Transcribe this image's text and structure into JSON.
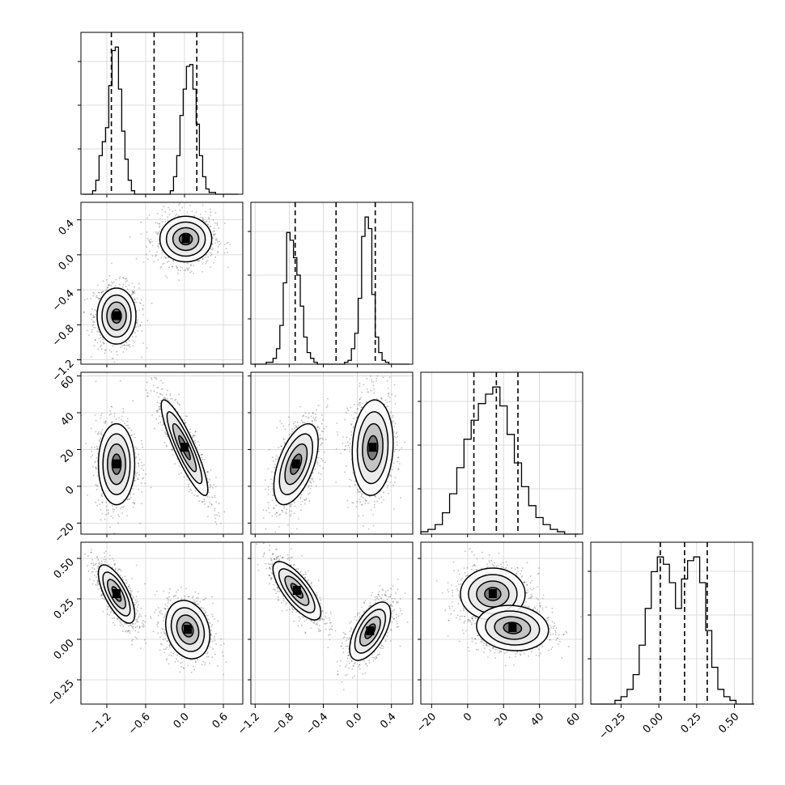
{
  "chart_data": {
    "type": "corner",
    "grid": true,
    "histograms": [
      {
        "index": 0,
        "xlim": [
          -1.6,
          0.9
        ],
        "bins": [
          -1.57,
          -1.52,
          -1.47,
          -1.42,
          -1.37,
          -1.32,
          -1.27,
          -1.22,
          -1.17,
          -1.12,
          -1.07,
          -1.02,
          -0.97,
          -0.92,
          -0.87,
          -0.82,
          -0.77,
          -0.72,
          -0.67,
          -0.62,
          -0.57,
          -0.52,
          -0.47,
          -0.42,
          -0.37,
          -0.32,
          -0.27,
          -0.22,
          -0.17,
          -0.12,
          -0.07,
          -0.02,
          0.03,
          0.08,
          0.13,
          0.18,
          0.23,
          0.28,
          0.33,
          0.38,
          0.43,
          0.48,
          0.53,
          0.58,
          0.63,
          0.68,
          0.73,
          0.78,
          0.83
        ],
        "counts": [
          0,
          0,
          0,
          2,
          8,
          22,
          30,
          38,
          62,
          82,
          84,
          60,
          36,
          20,
          8,
          2,
          0,
          0,
          0,
          0,
          0,
          0,
          0,
          0,
          0,
          0,
          0,
          2,
          10,
          22,
          45,
          60,
          73,
          74,
          60,
          40,
          22,
          10,
          3,
          1,
          1,
          0,
          0,
          0,
          0,
          0,
          0,
          0
        ],
        "quantiles": [
          -1.13,
          -0.47,
          0.19
        ]
      },
      {
        "index": 1,
        "xlim": [
          -1.25,
          0.65
        ],
        "bins": [
          -1.23,
          -1.19,
          -1.15,
          -1.11,
          -1.07,
          -1.03,
          -0.99,
          -0.95,
          -0.91,
          -0.87,
          -0.83,
          -0.79,
          -0.75,
          -0.71,
          -0.67,
          -0.63,
          -0.59,
          -0.55,
          -0.51,
          -0.47,
          -0.43,
          -0.39,
          -0.35,
          -0.31,
          -0.27,
          -0.23,
          -0.19,
          -0.15,
          -0.11,
          -0.07,
          -0.03,
          0.01,
          0.05,
          0.09,
          0.13,
          0.17,
          0.21,
          0.25,
          0.29,
          0.33,
          0.37,
          0.41,
          0.45,
          0.49,
          0.53,
          0.57,
          0.61
        ],
        "counts": [
          0,
          0,
          0,
          0,
          1,
          1,
          3,
          8,
          20,
          42,
          68,
          64,
          55,
          46,
          30,
          14,
          6,
          3,
          1,
          0,
          0,
          0,
          0,
          0,
          0,
          0,
          0,
          1,
          2,
          8,
          16,
          34,
          66,
          76,
          70,
          36,
          14,
          6,
          2,
          1,
          0,
          0,
          0,
          0,
          0,
          0
        ],
        "quantiles": [
          -0.73,
          -0.25,
          0.21
        ]
      },
      {
        "index": 2,
        "xlim": [
          -26,
          64
        ],
        "bins": [
          -26,
          -22,
          -18,
          -14,
          -10,
          -6,
          -2,
          2,
          6,
          10,
          14,
          18,
          22,
          26,
          30,
          34,
          38,
          42,
          46,
          50,
          54,
          58,
          62
        ],
        "counts": [
          1,
          2,
          4,
          9,
          17,
          28,
          40,
          48,
          55,
          59,
          62,
          54,
          42,
          30,
          20,
          12,
          7,
          4,
          2,
          1,
          0,
          0
        ],
        "quantiles": [
          3.5,
          16,
          28
        ]
      },
      {
        "index": 3,
        "xlim": [
          -0.45,
          0.62
        ],
        "bins": [
          -0.45,
          -0.41,
          -0.37,
          -0.33,
          -0.29,
          -0.25,
          -0.21,
          -0.17,
          -0.13,
          -0.09,
          -0.05,
          -0.01,
          0.03,
          0.07,
          0.11,
          0.15,
          0.19,
          0.23,
          0.27,
          0.31,
          0.35,
          0.39,
          0.43,
          0.47,
          0.51,
          0.55,
          0.59,
          0.63
        ],
        "counts": [
          0,
          0,
          0,
          0,
          1,
          2,
          4,
          8,
          16,
          26,
          36,
          40,
          38,
          33,
          26,
          34,
          39,
          40,
          33,
          20,
          10,
          4,
          2,
          1,
          0,
          0,
          0
        ],
        "quantiles": [
          0.01,
          0.17,
          0.32
        ]
      }
    ],
    "pairs": [
      {
        "row": 1,
        "col": 0,
        "xlim": [
          -1.6,
          0.9
        ],
        "ylim": [
          -1.25,
          0.6
        ],
        "clusters": [
          {
            "center": [
              -1.05,
              -0.7
            ],
            "sx": 0.15,
            "sy": 0.16,
            "corr": 0.0
          },
          {
            "center": [
              0.02,
              0.18
            ],
            "sx": 0.2,
            "sy": 0.13,
            "corr": 0.0
          }
        ]
      },
      {
        "row": 2,
        "col": 0,
        "xlim": [
          -1.6,
          0.9
        ],
        "ylim": [
          -26,
          62
        ],
        "clusters": [
          {
            "center": [
              -1.05,
              12
            ],
            "sx": 0.14,
            "sy": 11,
            "corr": 0.0
          },
          {
            "center": [
              0.0,
              21
            ],
            "sx": 0.18,
            "sy": 13,
            "corr": -0.88
          }
        ]
      },
      {
        "row": 2,
        "col": 1,
        "xlim": [
          -1.25,
          0.65
        ],
        "ylim": [
          -26,
          62
        ],
        "clusters": [
          {
            "center": [
              -0.72,
              12
            ],
            "sx": 0.13,
            "sy": 11,
            "corr": 0.55
          },
          {
            "center": [
              0.18,
              21
            ],
            "sx": 0.12,
            "sy": 13,
            "corr": 0.1
          }
        ]
      },
      {
        "row": 2,
        "col": 2,
        "skip": true
      },
      {
        "row": 3,
        "col": 0,
        "xlim": [
          -1.6,
          0.9
        ],
        "ylim": [
          -0.4,
          0.6
        ],
        "clusters": [
          {
            "center": [
              -1.05,
              0.28
            ],
            "sx": 0.14,
            "sy": 0.09,
            "corr": -0.7
          },
          {
            "center": [
              0.05,
              0.06
            ],
            "sx": 0.17,
            "sy": 0.09,
            "corr": -0.2
          }
        ]
      },
      {
        "row": 3,
        "col": 1,
        "xlim": [
          -1.25,
          0.65
        ],
        "ylim": [
          -0.4,
          0.6
        ],
        "clusters": [
          {
            "center": [
              -0.71,
              0.3
            ],
            "sx": 0.14,
            "sy": 0.09,
            "corr": -0.75
          },
          {
            "center": [
              0.15,
              0.05
            ],
            "sx": 0.12,
            "sy": 0.09,
            "corr": 0.6
          }
        ]
      },
      {
        "row": 3,
        "col": 2,
        "xlim": [
          -26,
          64
        ],
        "ylim": [
          -0.4,
          0.6
        ],
        "clusters": [
          {
            "center": [
              14,
              0.28
            ],
            "sx": 9,
            "sy": 0.08,
            "corr": 0.0
          },
          {
            "center": [
              25,
              0.07
            ],
            "sx": 10,
            "sy": 0.07,
            "corr": -0.1
          }
        ]
      }
    ],
    "axes": {
      "x_ticks": [
        {
          "col": 0,
          "values": [
            -1.2,
            -0.6,
            0.0,
            0.6
          ],
          "labels": [
            "−1.2",
            "−0.6",
            "0.0",
            "0.6"
          ]
        },
        {
          "col": 1,
          "values": [
            -1.2,
            -0.8,
            -0.4,
            0.0,
            0.4
          ],
          "labels": [
            "−1.2",
            "−0.8",
            "−0.4",
            "0.0",
            "0.4"
          ]
        },
        {
          "col": 2,
          "values": [
            -20,
            0,
            20,
            40,
            60
          ],
          "labels": [
            "−20",
            "0",
            "20",
            "40",
            "60"
          ]
        },
        {
          "col": 3,
          "values": [
            -0.25,
            0.0,
            0.25,
            0.5
          ],
          "labels": [
            "−0.25",
            "0.00",
            "0.25",
            "0.50"
          ]
        }
      ],
      "y_ticks": [
        {
          "row": 1,
          "values": [
            0.4,
            0.0,
            -0.4,
            -0.8,
            -1.2
          ],
          "labels": [
            "0.4",
            "0.0",
            "−0.4",
            "−0.8",
            "−1.2"
          ]
        },
        {
          "row": 2,
          "values": [
            60,
            40,
            20,
            0,
            -20
          ],
          "labels": [
            "60",
            "40",
            "20",
            "0",
            "−20"
          ]
        },
        {
          "row": 3,
          "values": [
            0.5,
            0.25,
            0.0,
            -0.25
          ],
          "labels": [
            "0.50",
            "0.25",
            "0.00",
            "−0.25"
          ]
        }
      ]
    }
  }
}
